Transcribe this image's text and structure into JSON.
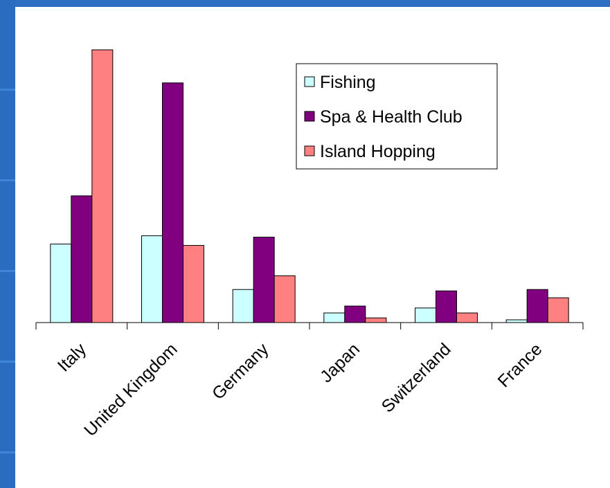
{
  "chart_data": {
    "type": "bar",
    "categories": [
      "Italy",
      "United Kingdom",
      "Germany",
      "Japan",
      "Switzerland",
      "France"
    ],
    "series": [
      {
        "name": "Fishing",
        "color": "#ccffff",
        "values": [
          2.85,
          3.15,
          1.2,
          0.35,
          0.53,
          0.1
        ]
      },
      {
        "name": "Spa & Health Club",
        "color": "#800080",
        "values": [
          4.6,
          8.7,
          3.1,
          0.6,
          1.15,
          1.2
        ]
      },
      {
        "name": "Island Hopping",
        "color": "#ff8080",
        "values": [
          9.9,
          2.8,
          1.7,
          0.17,
          0.35,
          0.9
        ]
      }
    ],
    "ylim": [
      0,
      10
    ],
    "grid": false,
    "legend_position": "top-right",
    "xlabel": "",
    "ylabel": ""
  }
}
